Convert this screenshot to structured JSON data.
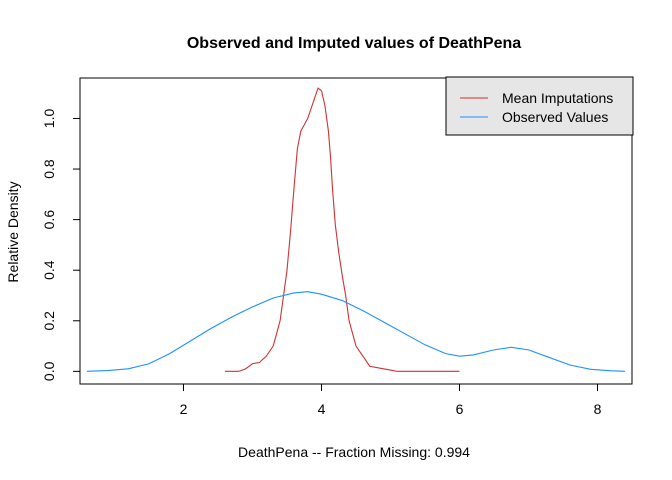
{
  "chart_data": {
    "type": "line",
    "title": "Observed and Imputed values of DeathPena",
    "xlabel": "DeathPena   --  Fraction Missing: 0.994",
    "ylabel": "Relative Density",
    "xlim": [
      0.5,
      8.5
    ],
    "ylim": [
      -0.05,
      1.16
    ],
    "xticks": [
      2,
      4,
      6,
      8
    ],
    "xtick_labels": [
      "2",
      "4",
      "6",
      "8"
    ],
    "yticks": [
      0.0,
      0.2,
      0.4,
      0.6,
      0.8,
      1.0
    ],
    "ytick_labels": [
      "0.0",
      "0.2",
      "0.4",
      "0.6",
      "0.8",
      "1.0"
    ],
    "grid": false,
    "legend_position": "top-right",
    "series": [
      {
        "name": "Mean Imputations",
        "color": "#CD3333",
        "x": [
          2.6,
          2.8,
          2.9,
          3.0,
          3.1,
          3.2,
          3.3,
          3.4,
          3.5,
          3.55,
          3.6,
          3.65,
          3.7,
          3.8,
          3.9,
          3.95,
          4.0,
          4.05,
          4.1,
          4.13,
          4.16,
          4.2,
          4.25,
          4.3,
          4.35,
          4.4,
          4.5,
          4.6,
          4.65,
          4.7,
          4.8,
          4.9,
          5.0,
          5.1,
          5.2,
          5.3,
          5.5,
          5.7,
          5.9,
          6.0
        ],
        "values": [
          0.0,
          0.0,
          0.01,
          0.03,
          0.035,
          0.06,
          0.1,
          0.2,
          0.4,
          0.55,
          0.72,
          0.88,
          0.95,
          1.0,
          1.08,
          1.12,
          1.11,
          1.05,
          0.95,
          0.85,
          0.72,
          0.58,
          0.47,
          0.38,
          0.3,
          0.2,
          0.1,
          0.06,
          0.04,
          0.02,
          0.015,
          0.01,
          0.005,
          0.0,
          0.0,
          0.0,
          0.0,
          0.0,
          0.0,
          0.0
        ]
      },
      {
        "name": "Observed Values",
        "color": "#1E90FF",
        "x": [
          0.6,
          0.9,
          1.2,
          1.5,
          1.8,
          2.1,
          2.4,
          2.7,
          3.0,
          3.3,
          3.6,
          3.8,
          4.0,
          4.3,
          4.6,
          4.9,
          5.2,
          5.5,
          5.8,
          6.0,
          6.2,
          6.5,
          6.75,
          7.0,
          7.3,
          7.6,
          7.9,
          8.2,
          8.4
        ],
        "values": [
          0.0,
          0.003,
          0.01,
          0.03,
          0.07,
          0.12,
          0.17,
          0.215,
          0.255,
          0.29,
          0.31,
          0.315,
          0.305,
          0.28,
          0.24,
          0.195,
          0.15,
          0.105,
          0.07,
          0.06,
          0.065,
          0.085,
          0.095,
          0.085,
          0.055,
          0.025,
          0.008,
          0.002,
          0.0
        ]
      }
    ]
  }
}
